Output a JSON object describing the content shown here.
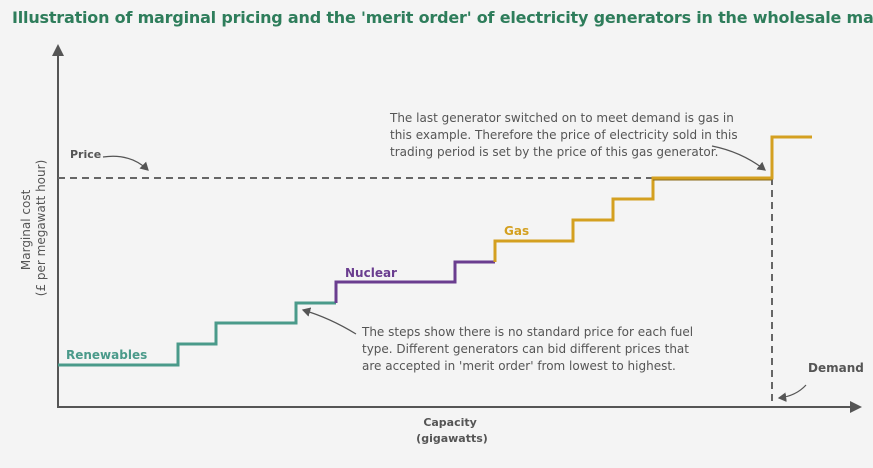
{
  "title": "Illustration of marginal pricing and the 'merit order' of electricity generators in the wholesale market",
  "axes": {
    "y_label_line1": "Marginal cost",
    "y_label_line2": "(£ per megawatt hour)",
    "x_label_line1": "Capacity",
    "x_label_line2": "(gigawatts)"
  },
  "labels": {
    "price": "Price",
    "demand": "Demand",
    "renewables": "Renewables",
    "nuclear": "Nuclear",
    "gas": "Gas"
  },
  "annotations": {
    "top": [
      "The last generator switched on to meet demand is gas in",
      "this example. Therefore the price of electricity sold in this",
      "trading period is set by the price of this gas generator."
    ],
    "bottom": [
      "The steps show there is no standard price for each fuel",
      "type. Different generators can bid different prices that",
      "are accepted in 'merit order' from lowest to highest."
    ]
  },
  "colors": {
    "title": "#2e7d5b",
    "renewables": "#4a9a8a",
    "nuclear": "#6a3d8f",
    "gas": "#d4a020",
    "axis": "#555555",
    "text": "#555555"
  }
}
